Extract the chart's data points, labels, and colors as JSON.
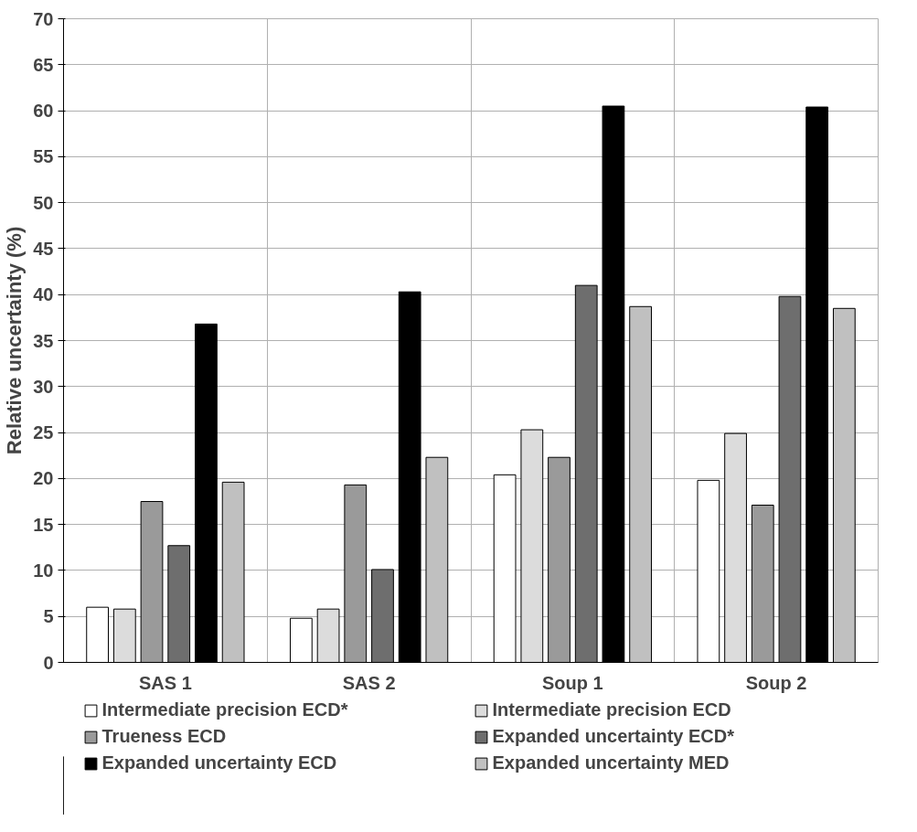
{
  "chart_data": {
    "type": "bar",
    "ylabel": "Relative uncertainty (%)",
    "categories": [
      "SAS 1",
      "SAS 2",
      "Soup 1",
      "Soup 2"
    ],
    "series": [
      {
        "name": "Intermediate precision ECD*",
        "color": "#ffffff",
        "values": [
          6.0,
          4.8,
          20.4,
          19.8
        ]
      },
      {
        "name": "Intermediate precision ECD",
        "color": "#dcdcdc",
        "values": [
          5.8,
          5.8,
          25.3,
          24.9
        ]
      },
      {
        "name": "Trueness ECD",
        "color": "#9a9a9a",
        "values": [
          17.5,
          19.3,
          22.3,
          17.1
        ]
      },
      {
        "name": "Expanded uncertainty ECD*",
        "color": "#6e6e6e",
        "values": [
          12.7,
          10.1,
          41.0,
          39.8
        ]
      },
      {
        "name": "Expanded uncertainty ECD",
        "color": "#000000",
        "values": [
          36.8,
          40.3,
          60.5,
          60.4
        ]
      },
      {
        "name": "Expanded uncertainty MED",
        "color": "#c0c0c0",
        "values": [
          19.6,
          22.3,
          38.7,
          38.5
        ]
      }
    ],
    "ylim": [
      0,
      70
    ],
    "yticks": [
      0,
      5,
      10,
      15,
      20,
      25,
      30,
      35,
      40,
      45,
      50,
      55,
      60,
      65,
      70
    ],
    "grid": true,
    "legend": "bottom"
  }
}
